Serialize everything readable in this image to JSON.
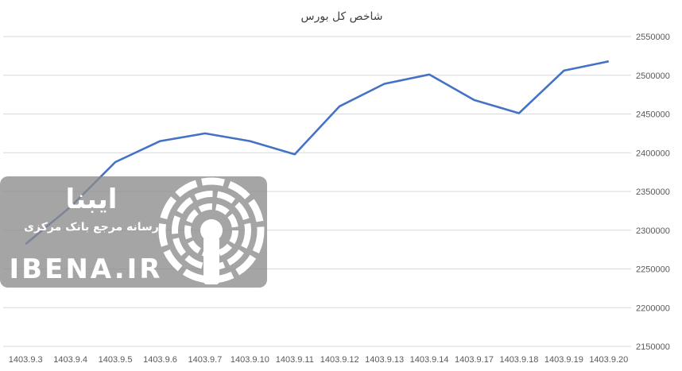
{
  "chart_data": {
    "type": "line",
    "title": "شاخص کل بورس",
    "categories": [
      "1403.9.3",
      "1403.9.4",
      "1403.9.5",
      "1403.9.6",
      "1403.9.7",
      "1403.9.10",
      "1403.9.11",
      "1403.9.12",
      "1403.9.13",
      "1403.9.14",
      "1403.9.17",
      "1403.9.18",
      "1403.9.19",
      "1403.9.20"
    ],
    "series": [
      {
        "values": [
          2282000,
          2330000,
          2388000,
          2415000,
          2425000,
          2415000,
          2398000,
          2460000,
          2489000,
          2501000,
          2468000,
          2451000,
          2506000,
          2518000
        ]
      }
    ],
    "yticks": [
      2150000,
      2200000,
      2250000,
      2300000,
      2350000,
      2400000,
      2450000,
      2500000,
      2550000
    ],
    "ylim": [
      2150000,
      2550000
    ],
    "xlabel": "",
    "ylabel": "",
    "y_axis_side": "right",
    "grid": true,
    "legend": "none",
    "line_color": "#4472C4",
    "grid_color": "#d9d9d9"
  },
  "watermark": {
    "logo_text": "ایبنا",
    "subtitle": "رسانه مرجع بانک مرکزی",
    "url": "IBENA.IR",
    "icon": "broadcast-icon"
  }
}
